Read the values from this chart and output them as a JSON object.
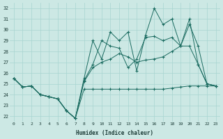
{
  "xlabel": "Humidex (Indice chaleur)",
  "xlim": [
    -0.5,
    23.5
  ],
  "ylim": [
    21.5,
    32.5
  ],
  "xticks": [
    0,
    1,
    2,
    3,
    4,
    5,
    6,
    7,
    8,
    9,
    10,
    11,
    12,
    13,
    14,
    15,
    16,
    17,
    18,
    19,
    20,
    21,
    22,
    23
  ],
  "yticks": [
    22,
    23,
    24,
    25,
    26,
    27,
    28,
    29,
    30,
    31,
    32
  ],
  "bg_color": "#cce8e4",
  "grid_color": "#a8d4d0",
  "line_color": "#1a6b60",
  "series1_y": [
    25.5,
    24.7,
    24.8,
    24.0,
    23.8,
    23.6,
    22.5,
    21.8,
    24.5,
    24.5,
    24.5,
    24.5,
    24.5,
    24.5,
    24.5,
    24.5,
    24.5,
    24.5,
    24.6,
    24.7,
    24.8,
    24.8,
    24.8,
    24.8
  ],
  "series2_y": [
    25.5,
    24.7,
    24.8,
    24.0,
    23.8,
    23.6,
    22.5,
    21.8,
    25.2,
    26.5,
    27.0,
    27.3,
    27.8,
    27.5,
    27.0,
    27.2,
    27.3,
    27.5,
    28.0,
    28.5,
    30.5,
    28.5,
    25.0,
    24.8
  ],
  "series3_y": [
    25.5,
    24.7,
    24.8,
    24.0,
    23.8,
    23.6,
    22.5,
    21.8,
    25.3,
    26.8,
    29.0,
    28.5,
    28.3,
    26.5,
    27.3,
    29.3,
    29.4,
    29.0,
    29.3,
    28.5,
    28.5,
    26.8,
    25.0,
    24.8
  ],
  "series4_y": [
    25.5,
    24.7,
    24.8,
    24.0,
    23.8,
    23.6,
    22.5,
    21.8,
    25.5,
    29.0,
    27.3,
    29.8,
    29.0,
    29.8,
    26.2,
    29.5,
    32.0,
    30.5,
    31.0,
    28.5,
    31.0,
    26.8,
    25.0,
    24.8
  ]
}
